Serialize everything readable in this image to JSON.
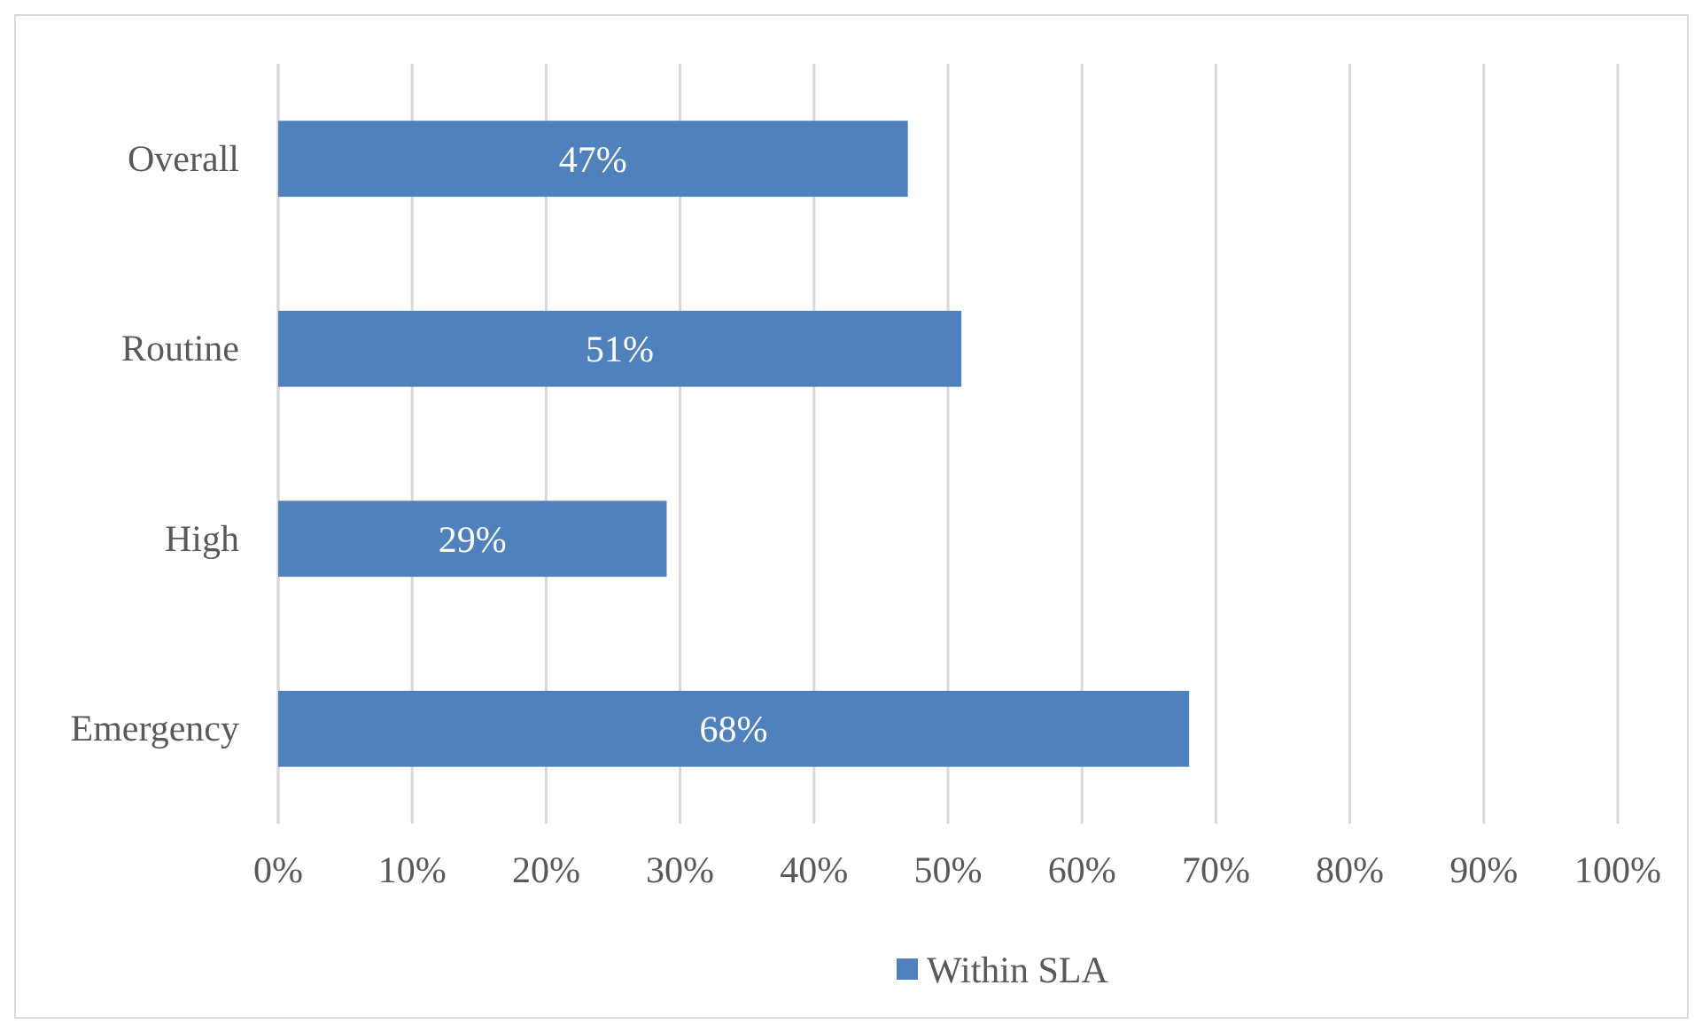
{
  "chart_data": {
    "type": "bar",
    "orientation": "horizontal",
    "categories": [
      "Overall",
      "Routine",
      "High",
      "Emergency"
    ],
    "series": [
      {
        "name": "Within SLA",
        "color": "#4f81bd",
        "values": [
          47,
          51,
          29,
          68
        ],
        "value_labels": [
          "47%",
          "51%",
          "29%",
          "68%"
        ]
      }
    ],
    "xlim": [
      0,
      100
    ],
    "xticks": [
      {
        "value": 0,
        "label": "0%"
      },
      {
        "value": 10,
        "label": "10%"
      },
      {
        "value": 20,
        "label": "20%"
      },
      {
        "value": 30,
        "label": "30%"
      },
      {
        "value": 40,
        "label": "40%"
      },
      {
        "value": 50,
        "label": "50%"
      },
      {
        "value": 60,
        "label": "60%"
      },
      {
        "value": 70,
        "label": "70%"
      },
      {
        "value": 80,
        "label": "80%"
      },
      {
        "value": 90,
        "label": "90%"
      },
      {
        "value": 100,
        "label": "100%"
      }
    ],
    "grid": "x",
    "legend": "bottom"
  }
}
